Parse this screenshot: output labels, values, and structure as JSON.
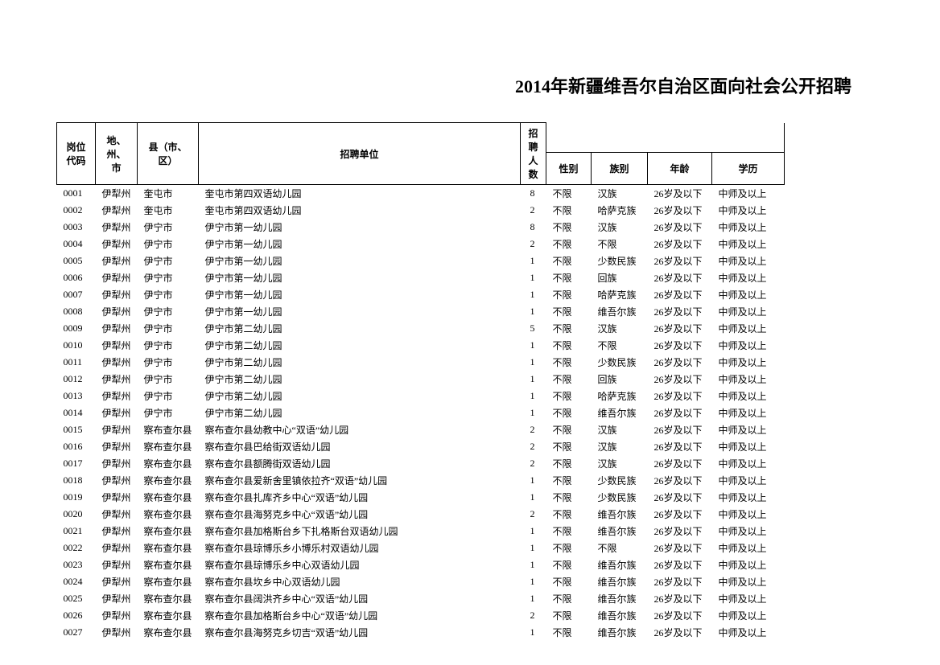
{
  "title": "2014年新疆维吾尔自治区面向社会公开招聘",
  "headers": {
    "code": "岗位代码",
    "region": "地、州、市",
    "county": "县（市、区）",
    "unit": "招聘单位",
    "count": "招聘人数",
    "gender": "性别",
    "ethnic": "族别",
    "age": "年龄",
    "edu": "学历"
  },
  "rows": [
    {
      "code": "0001",
      "region": "伊犁州",
      "county": "奎屯市",
      "unit": "奎屯市第四双语幼儿园",
      "count": "8",
      "gender": "不限",
      "ethnic": "汉族",
      "age": "26岁及以下",
      "edu": "中师及以上"
    },
    {
      "code": "0002",
      "region": "伊犁州",
      "county": "奎屯市",
      "unit": "奎屯市第四双语幼儿园",
      "count": "2",
      "gender": "不限",
      "ethnic": "哈萨克族",
      "age": "26岁及以下",
      "edu": "中师及以上"
    },
    {
      "code": "0003",
      "region": "伊犁州",
      "county": "伊宁市",
      "unit": "伊宁市第一幼儿园",
      "count": "8",
      "gender": "不限",
      "ethnic": "汉族",
      "age": "26岁及以下",
      "edu": "中师及以上"
    },
    {
      "code": "0004",
      "region": "伊犁州",
      "county": "伊宁市",
      "unit": "伊宁市第一幼儿园",
      "count": "2",
      "gender": "不限",
      "ethnic": "不限",
      "age": "26岁及以下",
      "edu": "中师及以上"
    },
    {
      "code": "0005",
      "region": "伊犁州",
      "county": "伊宁市",
      "unit": "伊宁市第一幼儿园",
      "count": "1",
      "gender": "不限",
      "ethnic": "少数民族",
      "age": "26岁及以下",
      "edu": "中师及以上"
    },
    {
      "code": "0006",
      "region": "伊犁州",
      "county": "伊宁市",
      "unit": "伊宁市第一幼儿园",
      "count": "1",
      "gender": "不限",
      "ethnic": "回族",
      "age": "26岁及以下",
      "edu": "中师及以上"
    },
    {
      "code": "0007",
      "region": "伊犁州",
      "county": "伊宁市",
      "unit": "伊宁市第一幼儿园",
      "count": "1",
      "gender": "不限",
      "ethnic": "哈萨克族",
      "age": "26岁及以下",
      "edu": "中师及以上"
    },
    {
      "code": "0008",
      "region": "伊犁州",
      "county": "伊宁市",
      "unit": "伊宁市第一幼儿园",
      "count": "1",
      "gender": "不限",
      "ethnic": "维吾尔族",
      "age": "26岁及以下",
      "edu": "中师及以上"
    },
    {
      "code": "0009",
      "region": "伊犁州",
      "county": "伊宁市",
      "unit": "伊宁市第二幼儿园",
      "count": "5",
      "gender": "不限",
      "ethnic": "汉族",
      "age": "26岁及以下",
      "edu": "中师及以上"
    },
    {
      "code": "0010",
      "region": "伊犁州",
      "county": "伊宁市",
      "unit": "伊宁市第二幼儿园",
      "count": "1",
      "gender": "不限",
      "ethnic": "不限",
      "age": "26岁及以下",
      "edu": "中师及以上"
    },
    {
      "code": "0011",
      "region": "伊犁州",
      "county": "伊宁市",
      "unit": "伊宁市第二幼儿园",
      "count": "1",
      "gender": "不限",
      "ethnic": "少数民族",
      "age": "26岁及以下",
      "edu": "中师及以上"
    },
    {
      "code": "0012",
      "region": "伊犁州",
      "county": "伊宁市",
      "unit": "伊宁市第二幼儿园",
      "count": "1",
      "gender": "不限",
      "ethnic": "回族",
      "age": "26岁及以下",
      "edu": "中师及以上"
    },
    {
      "code": "0013",
      "region": "伊犁州",
      "county": "伊宁市",
      "unit": "伊宁市第二幼儿园",
      "count": "1",
      "gender": "不限",
      "ethnic": "哈萨克族",
      "age": "26岁及以下",
      "edu": "中师及以上"
    },
    {
      "code": "0014",
      "region": "伊犁州",
      "county": "伊宁市",
      "unit": "伊宁市第二幼儿园",
      "count": "1",
      "gender": "不限",
      "ethnic": "维吾尔族",
      "age": "26岁及以下",
      "edu": "中师及以上"
    },
    {
      "code": "0015",
      "region": "伊犁州",
      "county": "察布查尔县",
      "unit": "察布查尔县幼教中心“双语”幼儿园",
      "count": "2",
      "gender": "不限",
      "ethnic": "汉族",
      "age": "26岁及以下",
      "edu": "中师及以上"
    },
    {
      "code": "0016",
      "region": "伊犁州",
      "county": "察布查尔县",
      "unit": "察布查尔县巴给街双语幼儿园",
      "count": "2",
      "gender": "不限",
      "ethnic": "汉族",
      "age": "26岁及以下",
      "edu": "中师及以上"
    },
    {
      "code": "0017",
      "region": "伊犁州",
      "county": "察布查尔县",
      "unit": "察布查尔县额腾街双语幼儿园",
      "count": "2",
      "gender": "不限",
      "ethnic": "汉族",
      "age": "26岁及以下",
      "edu": "中师及以上"
    },
    {
      "code": "0018",
      "region": "伊犁州",
      "county": "察布查尔县",
      "unit": "察布查尔县爱新舍里镇依拉齐“双语”幼儿园",
      "count": "1",
      "gender": "不限",
      "ethnic": "少数民族",
      "age": "26岁及以下",
      "edu": "中师及以上"
    },
    {
      "code": "0019",
      "region": "伊犁州",
      "county": "察布查尔县",
      "unit": "察布查尔县扎库齐乡中心“双语”幼儿园",
      "count": "1",
      "gender": "不限",
      "ethnic": "少数民族",
      "age": "26岁及以下",
      "edu": "中师及以上"
    },
    {
      "code": "0020",
      "region": "伊犁州",
      "county": "察布查尔县",
      "unit": "察布查尔县海努克乡中心“双语”幼儿园",
      "count": "2",
      "gender": "不限",
      "ethnic": "维吾尔族",
      "age": "26岁及以下",
      "edu": "中师及以上"
    },
    {
      "code": "0021",
      "region": "伊犁州",
      "county": "察布查尔县",
      "unit": "察布查尔县加格斯台乡下扎格斯台双语幼儿园",
      "count": "1",
      "gender": "不限",
      "ethnic": "维吾尔族",
      "age": "26岁及以下",
      "edu": "中师及以上"
    },
    {
      "code": "0022",
      "region": "伊犁州",
      "county": "察布查尔县",
      "unit": "察布查尔县琼博乐乡小博乐村双语幼儿园",
      "count": "1",
      "gender": "不限",
      "ethnic": "不限",
      "age": "26岁及以下",
      "edu": "中师及以上"
    },
    {
      "code": "0023",
      "region": "伊犁州",
      "county": "察布查尔县",
      "unit": "察布查尔县琼博乐乡中心双语幼儿园",
      "count": "1",
      "gender": "不限",
      "ethnic": "维吾尔族",
      "age": "26岁及以下",
      "edu": "中师及以上"
    },
    {
      "code": "0024",
      "region": "伊犁州",
      "county": "察布查尔县",
      "unit": "察布查尔县坎乡中心双语幼儿园",
      "count": "1",
      "gender": "不限",
      "ethnic": "维吾尔族",
      "age": "26岁及以下",
      "edu": "中师及以上"
    },
    {
      "code": "0025",
      "region": "伊犁州",
      "county": "察布查尔县",
      "unit": "察布查尔县阔洪齐乡中心“双语”幼儿园",
      "count": "1",
      "gender": "不限",
      "ethnic": "维吾尔族",
      "age": "26岁及以下",
      "edu": "中师及以上"
    },
    {
      "code": "0026",
      "region": "伊犁州",
      "county": "察布查尔县",
      "unit": "察布查尔县加格斯台乡中心“双语”幼儿园",
      "count": "2",
      "gender": "不限",
      "ethnic": "维吾尔族",
      "age": "26岁及以下",
      "edu": "中师及以上"
    },
    {
      "code": "0027",
      "region": "伊犁州",
      "county": "察布查尔县",
      "unit": "察布查尔县海努克乡切吉“双语”幼儿园",
      "count": "1",
      "gender": "不限",
      "ethnic": "维吾尔族",
      "age": "26岁及以下",
      "edu": "中师及以上"
    }
  ]
}
